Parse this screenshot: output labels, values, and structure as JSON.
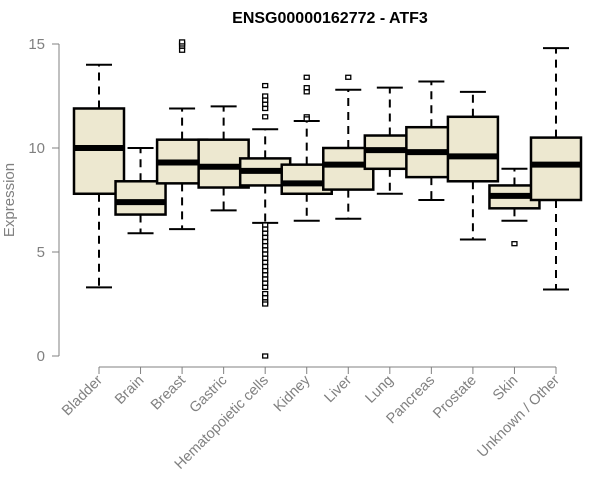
{
  "chart_data": {
    "type": "boxplot",
    "title": "ENSG00000162772 - ATF3",
    "xlabel": "",
    "ylabel": "Expression",
    "ylim": [
      0,
      15
    ],
    "yticks": [
      0,
      5,
      10,
      15
    ],
    "grid": false,
    "legend": "none",
    "box_fill": "#ede8d0",
    "line_color": "#000000",
    "axis_color": "#808080",
    "categories": [
      "Bladder",
      "Brain",
      "Breast",
      "Gastric",
      "Hematopoietic cells",
      "Kidney",
      "Liver",
      "Lung",
      "Pancreas",
      "Prostate",
      "Skin",
      "Unknown / Other"
    ],
    "series": [
      {
        "name": "Bladder",
        "whisker_low": 3.3,
        "q1": 7.8,
        "median": 10.0,
        "q3": 11.9,
        "whisker_high": 14.0,
        "outliers": []
      },
      {
        "name": "Brain",
        "whisker_low": 5.9,
        "q1": 6.8,
        "median": 7.4,
        "q3": 8.4,
        "whisker_high": 10.0,
        "outliers": []
      },
      {
        "name": "Breast",
        "whisker_low": 6.1,
        "q1": 8.3,
        "median": 9.3,
        "q3": 10.4,
        "whisker_high": 11.9,
        "outliers": [
          14.7,
          14.9,
          15.0,
          15.1
        ]
      },
      {
        "name": "Gastric",
        "whisker_low": 7.0,
        "q1": 8.1,
        "median": 9.1,
        "q3": 10.4,
        "whisker_high": 12.0,
        "outliers": []
      },
      {
        "name": "Hematopoietic cells",
        "whisker_low": 6.4,
        "q1": 8.2,
        "median": 8.9,
        "q3": 9.5,
        "whisker_high": 10.9,
        "outliers": [
          13.0,
          12.5,
          12.3,
          12.1,
          11.9,
          11.5,
          6.3,
          6.1,
          5.9,
          5.7,
          5.5,
          5.3,
          5.1,
          4.9,
          4.7,
          4.5,
          4.3,
          4.1,
          3.9,
          3.7,
          3.5,
          3.3,
          3.0,
          2.8,
          2.6,
          2.5,
          0.0
        ]
      },
      {
        "name": "Kidney",
        "whisker_low": 6.5,
        "q1": 7.8,
        "median": 8.3,
        "q3": 9.2,
        "whisker_high": 11.3,
        "outliers": [
          13.4,
          12.9,
          12.7,
          11.5,
          11.4
        ]
      },
      {
        "name": "Liver",
        "whisker_low": 6.6,
        "q1": 8.0,
        "median": 9.2,
        "q3": 10.0,
        "whisker_high": 12.8,
        "outliers": [
          13.4
        ]
      },
      {
        "name": "Lung",
        "whisker_low": 7.8,
        "q1": 9.0,
        "median": 9.9,
        "q3": 10.6,
        "whisker_high": 12.9,
        "outliers": []
      },
      {
        "name": "Pancreas",
        "whisker_low": 7.5,
        "q1": 8.6,
        "median": 9.8,
        "q3": 11.0,
        "whisker_high": 13.2,
        "outliers": []
      },
      {
        "name": "Prostate",
        "whisker_low": 5.6,
        "q1": 8.4,
        "median": 9.6,
        "q3": 11.5,
        "whisker_high": 12.7,
        "outliers": []
      },
      {
        "name": "Skin",
        "whisker_low": 6.5,
        "q1": 7.1,
        "median": 7.7,
        "q3": 8.2,
        "whisker_high": 9.0,
        "outliers": [
          5.4
        ]
      },
      {
        "name": "Unknown / Other",
        "whisker_low": 3.2,
        "q1": 7.5,
        "median": 9.2,
        "q3": 10.5,
        "whisker_high": 14.8,
        "outliers": []
      }
    ]
  }
}
